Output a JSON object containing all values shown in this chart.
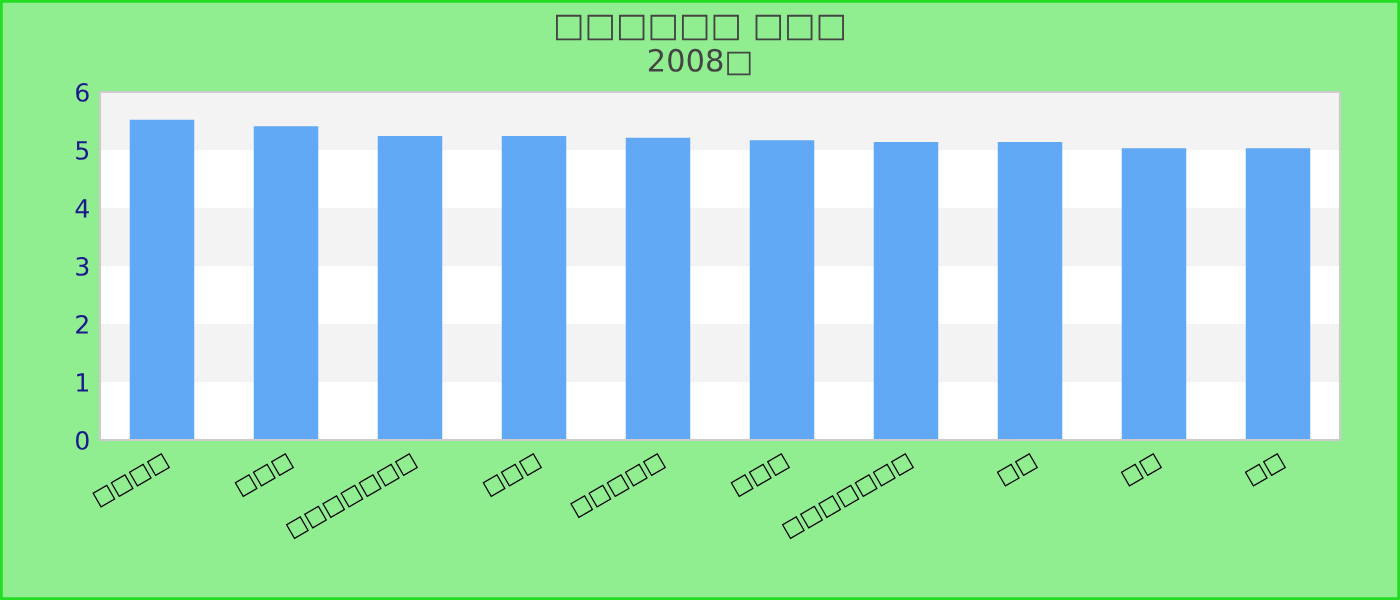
{
  "chart_data": {
    "type": "bar",
    "title": "□□□□□□ □□□",
    "subtitle": "2008□",
    "categories": [
      "□□□□",
      "□□□",
      "□□□□□□□",
      "□□□",
      "□□□□□",
      "□□□",
      "□□□□□□□",
      "□□",
      "□□",
      "□□"
    ],
    "values": [
      5.52,
      5.41,
      5.24,
      5.24,
      5.21,
      5.17,
      5.14,
      5.14,
      5.03,
      5.03
    ],
    "color": "#61a8f5",
    "ylim": [
      0,
      6
    ],
    "yticks": [
      0,
      1,
      2,
      3,
      4,
      5,
      6
    ],
    "bands": [
      {
        "axis": "y",
        "from": 1,
        "to": 2,
        "color": "#f3f3f3"
      },
      {
        "axis": "y",
        "from": 3,
        "to": 4,
        "color": "#f3f3f3"
      },
      {
        "axis": "y",
        "from": 5,
        "to": 6,
        "color": "#f3f3f3"
      }
    ]
  }
}
